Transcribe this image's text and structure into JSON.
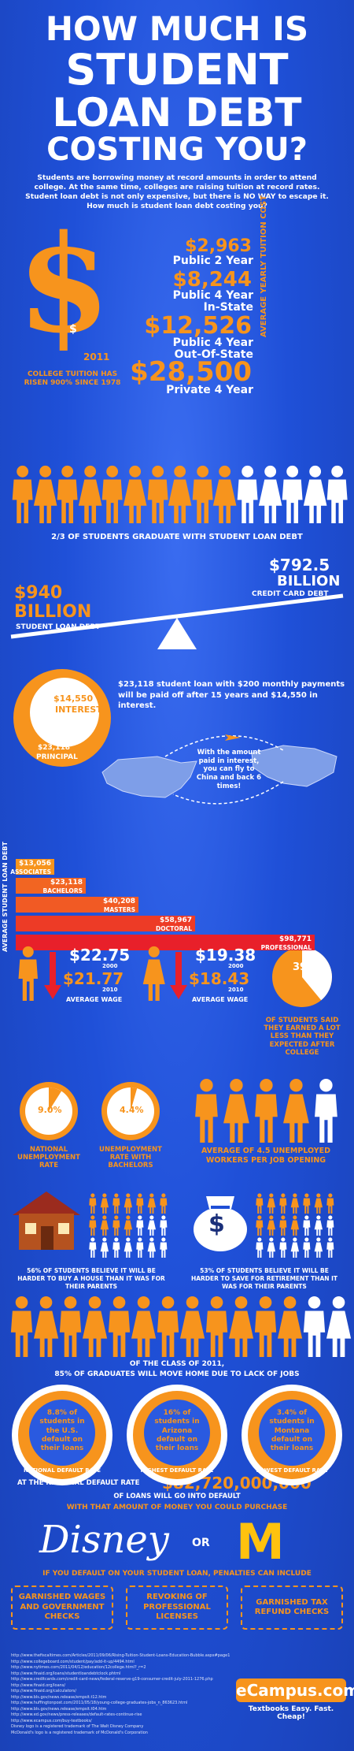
{
  "title": {
    "l1": "HOW MUCH IS",
    "l2": "STUDENT",
    "l3": "LOAN DEBT",
    "l4": "COSTING YOU?"
  },
  "intro": "Students are borrowing money at record amounts in order to attend college. At the same time, colleges are raising tuition at record rates. Student loan debt is not only expensive, but there is NO WAY to escape it. How much is student loan debt costing you?",
  "dollar": {
    "sign": "$",
    "small": "$",
    "year": "2011",
    "caption": "COLLEGE TUITION HAS RISEN 900% SINCE 1978"
  },
  "costs": [
    {
      "amount": "$2,963",
      "label": "Public 2 Year"
    },
    {
      "amount": "$8,244",
      "label": "Public 4 Year In-State"
    },
    {
      "amount": "$12,526",
      "label": "Public 4 Year Out-Of-State"
    },
    {
      "amount": "$28,500",
      "label": "Private 4 Year"
    }
  ],
  "costs_side_label": "AVERAGE YEARLY TUITION COST",
  "grad_caption": "2/3 OF STUDENTS GRADUATE WITH STUDENT LOAN DEBT",
  "seesaw": {
    "left_amount": "$940",
    "left_unit": "BILLION",
    "left_label": "STUDENT LOAN DEBT",
    "right_amount": "$792.5",
    "right_unit": "BILLION",
    "right_label": "CREDIT CARD DEBT"
  },
  "interest": {
    "interest_amount": "$14,550",
    "interest_label": "INTEREST",
    "principal_amount": "$23,118",
    "principal_label": "PRINCIPAL",
    "text": "$23,118 student loan with $200 monthly payments will be paid off after 15 years and $14,550 in interest.",
    "fly_text": "With the amount paid in interest, you can fly to China and back 6 times!"
  },
  "degree_side_label": "AVERAGE STUDENT LOAN DEBT",
  "degrees": [
    {
      "value": "$13,056",
      "label": "ASSOCIATES",
      "frac": 0.13,
      "color": "#f7941d"
    },
    {
      "value": "$23,118",
      "label": "BACHELORS",
      "frac": 0.235,
      "color": "#f26522"
    },
    {
      "value": "$40,208",
      "label": "MASTERS",
      "frac": 0.41,
      "color": "#f15a24"
    },
    {
      "value": "$58,967",
      "label": "DOCTORAL",
      "frac": 0.6,
      "color": "#ed3b26"
    },
    {
      "value": "$98,771",
      "label": "PROFESSIONAL",
      "frac": 1.0,
      "color": "#e8202a"
    }
  ],
  "wages": [
    {
      "a1": "$22.75",
      "y1": "2000",
      "a2": "$21.77",
      "y2": "2010",
      "label": "AVERAGE WAGE"
    },
    {
      "a1": "$19.38",
      "y1": "2000",
      "a2": "$18.43",
      "y2": "2010",
      "label": "AVERAGE WAGE"
    }
  ],
  "pie39": {
    "value": "39%",
    "text": "OF STUDENTS SAID THEY EARNED A LOT LESS THAN THEY EXPECTED AFTER COLLEGE",
    "pct": 0.39
  },
  "unemp": [
    {
      "value": "9.0%",
      "text": "NATIONAL UNEMPLOYMENT RATE",
      "pct": 0.09
    },
    {
      "value": "4.4%",
      "text": "UNEMPLOYMENT RATE WITH BACHELORS",
      "pct": 0.044
    }
  ],
  "workers_text": "AVERAGE OF 4.5 UNEMPLOYED WORKERS PER JOB OPENING",
  "house_text": "56% OF STUDENTS BELIEVE IT WILL BE HARDER TO BUY A HOUSE THAN IT WAS FOR THEIR PARENTS",
  "money_text": "53% OF STUDENTS BELIEVE IT WILL BE HARDER TO SAVE FOR RETIREMENT THAN IT WAS FOR THEIR PARENTS",
  "moneybag_sign": "$",
  "move_home": {
    "l1": "OF THE CLASS OF 2011,",
    "l2": "85% OF GRADUATES WILL MOVE HOME DUE TO LACK OF JOBS"
  },
  "default_rates": [
    {
      "text": "8.8% of students in the U.S. default on their loans",
      "ring": "NATIONAL DEFAULT RATE"
    },
    {
      "text": "16% of students in Arizona default on their loans",
      "ring": "HIGHEST DEFAULT RATE"
    },
    {
      "text": "3.4% of students in Montana default on their loans",
      "ring": "LOWEST DEFAULT RATE"
    }
  ],
  "default_amount": {
    "pre": "AT THE NATIONAL DEFAULT RATE",
    "amount": "$82,720,000,000",
    "post": "OF LOANS WILL GO INTO DEFAULT"
  },
  "purchase_text": "WITH THAT AMOUNT OF MONEY YOU COULD PURCHASE",
  "brands": {
    "disney": "Disney",
    "or": "OR",
    "mcd": "M"
  },
  "penalty_intro": "IF YOU DEFAULT ON YOUR STUDENT LOAN, PENALTIES CAN INCLUDE",
  "penalties": [
    "GARNISHED WAGES AND GOVERNMENT CHECKS",
    "REVOKING OF PROFESSIONAL LICENSES",
    "GARNISHED TAX REFUND CHECKS"
  ],
  "sources": [
    "http://www.thefiscaltimes.com/Articles/2011/09/06/Rising-Tuition-Student-Loans-Education-Bubble.aspx#page1",
    "http://www.collegeboard.com/student/pay/add-it-up/4494.html",
    "http://www.nytimes.com/2011/04/12/education/12college.html?_r=2",
    "http://www.finaid.org/loans/studentloandebtclock.phtml",
    "http://www.creditcards.com/credit-card-news/federal-reserve-g19-consumer-credit-july-2011-1276.php",
    "http://www.finaid.org/loans/",
    "http://www.finaid.org/calculators/",
    "http://www.bls.gov/news.release/empsit.t12.htm",
    "http://www.huffingtonpost.com/2011/05/18/young-college-graduates-jobs_n_863623.html",
    "http://www.bls.gov/news.release/empsit.t04.htm",
    "http://www.ed.gov/news/press-releases/default-rates-continue-rise",
    "http://www.ecampus.com/buy-textbooks/",
    "Disney logo is a registered trademark of The Walt Disney Company",
    "McDonald's logo is a registered trademark of McDonald's Corporation"
  ],
  "brand_footer": {
    "name": "eCampus.com",
    "tagline": "Textbooks  Easy. Fast. Cheap!"
  },
  "colors": {
    "orange": "#f7941d",
    "blue": "#1f4fd6",
    "red": "#e8202a",
    "white": "#ffffff"
  }
}
